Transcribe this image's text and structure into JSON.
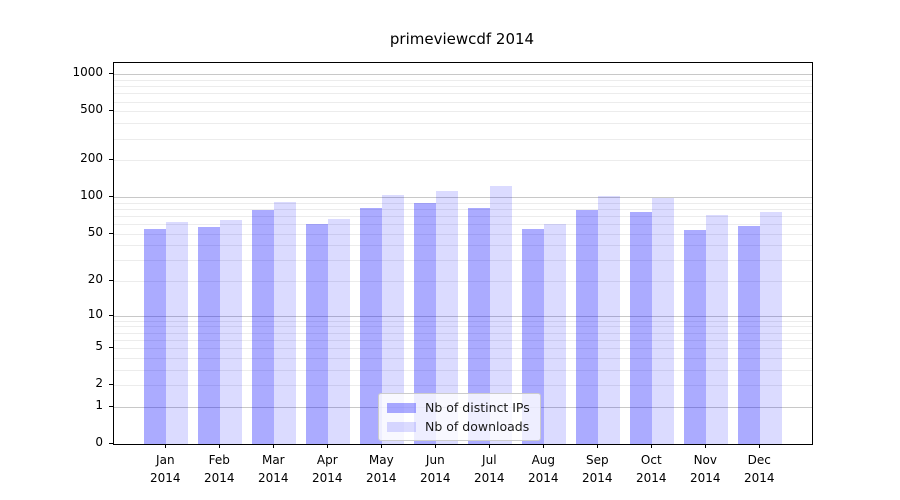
{
  "figure": {
    "title": "primeviewcdf 2014"
  },
  "chart_data": {
    "type": "bar",
    "title": "primeviewcdf 2014",
    "categories": [
      "Jan",
      "Feb",
      "Mar",
      "Apr",
      "May",
      "Jun",
      "Jul",
      "Aug",
      "Sep",
      "Oct",
      "Nov",
      "Dec"
    ],
    "category_year": "2014",
    "series": [
      {
        "name": "Nb of distinct IPs",
        "color": "rgba(0,0,255,0.33)",
        "values": [
          55,
          57,
          78,
          60,
          82,
          90,
          82,
          55,
          78,
          75,
          54,
          58
        ]
      },
      {
        "name": "Nb of downloads",
        "color": "rgba(0,0,255,0.14)",
        "values": [
          63,
          65,
          92,
          66,
          105,
          112,
          124,
          60,
          102,
          98,
          71,
          75
        ]
      }
    ],
    "y_scale": "log1p",
    "y_ticks": [
      0,
      1,
      2,
      5,
      10,
      20,
      50,
      100,
      200,
      500,
      1000
    ],
    "y_major_gridlines": [
      1,
      10,
      100,
      1000
    ],
    "ylim": [
      0,
      1236
    ],
    "grid": true,
    "legend_position": "lower-center-inside"
  }
}
